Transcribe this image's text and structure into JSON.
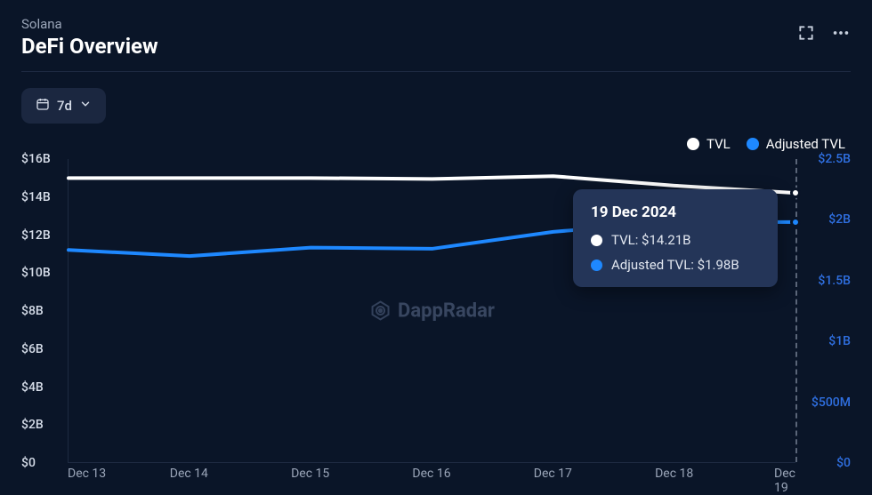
{
  "header": {
    "subtitle": "Solana",
    "title": "DeFi Overview"
  },
  "controls": {
    "range_label": "7d"
  },
  "legend": [
    {
      "label": "TVL",
      "color": "#ffffff"
    },
    {
      "label": "Adjusted TVL",
      "color": "#1e88ff"
    }
  ],
  "watermark": "DappRadar",
  "colors": {
    "background": "#0a1528",
    "divider": "#1e2a42",
    "text_muted": "#9aa5b8",
    "tick_left": "#d6dde9",
    "tick_right": "#2f6fe0",
    "dropdown_bg": "#1b2740",
    "tooltip_bg": "#243558",
    "hover_line": "#5a6578",
    "watermark": "#44536f"
  },
  "chart": {
    "type": "line",
    "x_labels": [
      "Dec 13",
      "Dec 14",
      "Dec 15",
      "Dec 16",
      "Dec 17",
      "Dec 18",
      "Dec 19"
    ],
    "left_axis": {
      "min": 0,
      "max": 16,
      "unit": "B",
      "ticks": [
        {
          "value": 16,
          "label": "$16B"
        },
        {
          "value": 14,
          "label": "$14B"
        },
        {
          "value": 12,
          "label": "$12B"
        },
        {
          "value": 10,
          "label": "$10B"
        },
        {
          "value": 8,
          "label": "$8B"
        },
        {
          "value": 6,
          "label": "$6B"
        },
        {
          "value": 4,
          "label": "$4B"
        },
        {
          "value": 2,
          "label": "$2B"
        },
        {
          "value": 0,
          "label": "$0"
        }
      ]
    },
    "right_axis": {
      "min": 0,
      "max": 2.5,
      "unit": "B",
      "ticks": [
        {
          "value": 2.5,
          "label": "$2.5B"
        },
        {
          "value": 2.0,
          "label": "$2B"
        },
        {
          "value": 1.5,
          "label": "$1.5B"
        },
        {
          "value": 1.0,
          "label": "$1B"
        },
        {
          "value": 0.5,
          "label": "$500M"
        },
        {
          "value": 0.0,
          "label": "$0"
        }
      ]
    },
    "series": [
      {
        "name": "TVL",
        "axis": "left",
        "color": "#ffffff",
        "line_width": 4,
        "values": [
          15.0,
          15.0,
          15.0,
          14.95,
          15.1,
          14.6,
          14.21
        ]
      },
      {
        "name": "Adjusted TVL",
        "axis": "right",
        "color": "#1e88ff",
        "line_width": 4,
        "values": [
          1.75,
          1.7,
          1.77,
          1.76,
          1.9,
          1.98,
          1.98
        ]
      }
    ],
    "hover": {
      "index": 6,
      "date": "19 Dec 2024",
      "rows": [
        {
          "dot_color": "#ffffff",
          "label": "TVL: $14.21B"
        },
        {
          "dot_color": "#1e88ff",
          "label": "Adjusted TVL: $1.98B"
        }
      ]
    }
  }
}
